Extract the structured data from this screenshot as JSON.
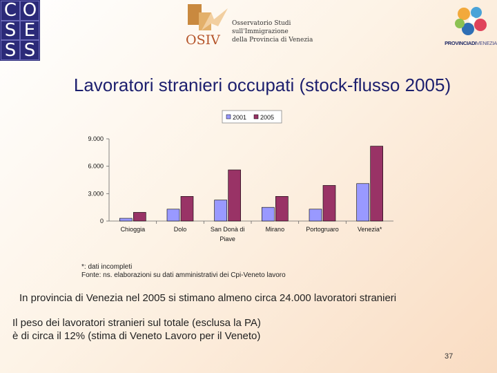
{
  "logos": {
    "coses_letters": [
      "C",
      "O",
      "S",
      "E",
      "S",
      "S"
    ],
    "osiv_mark": "OSIV",
    "osiv_lines": [
      "Osservatorio Studi",
      "sull'Immigrazione",
      "della Provincia di Venezia"
    ],
    "provincia_bold": "PROVINCIADI",
    "provincia_light": "VENEZIA"
  },
  "slide": {
    "title": "Lavoratori stranieri occupati (stock-flusso 2005)",
    "note_1": "*: dati incompleti",
    "note_2": "Fonte: ns. elaborazioni su dati amministrativi dei Cpi-Veneto lavoro",
    "sentence": "In provincia di Venezia nel 2005 si stimano almeno circa 24.000 lavoratori stranieri",
    "para_line_1": "Il peso dei lavoratori stranieri sul totale (esclusa la PA)",
    "para_line_2": "è di circa  il 12% (stima di Veneto Lavoro per il Veneto)",
    "page_number": "37"
  },
  "chart_data": {
    "type": "bar",
    "categories": [
      "Chioggia",
      "Dolo",
      "San Donà di Piave",
      "Mirano",
      "Portogruaro",
      "Venezia*"
    ],
    "category_lines": [
      [
        "Chioggia"
      ],
      [
        "Dolo"
      ],
      [
        "San Donà di",
        "Piave"
      ],
      [
        "Mirano"
      ],
      [
        "Portogruaro"
      ],
      [
        "Venezia*"
      ]
    ],
    "series": [
      {
        "name": "2001",
        "values": [
          300,
          1300,
          2300,
          1500,
          1300,
          4100
        ],
        "color": "#9999ff"
      },
      {
        "name": "2005",
        "values": [
          950,
          2700,
          5600,
          2700,
          3900,
          8200
        ],
        "color": "#993366"
      }
    ],
    "y_ticks": [
      0,
      3000,
      6000,
      9000
    ],
    "y_tick_labels": [
      "0",
      "3.000",
      "6.000",
      "9.000"
    ],
    "ylim": [
      0,
      9000
    ],
    "legend_position": "top-center",
    "grid": false
  }
}
